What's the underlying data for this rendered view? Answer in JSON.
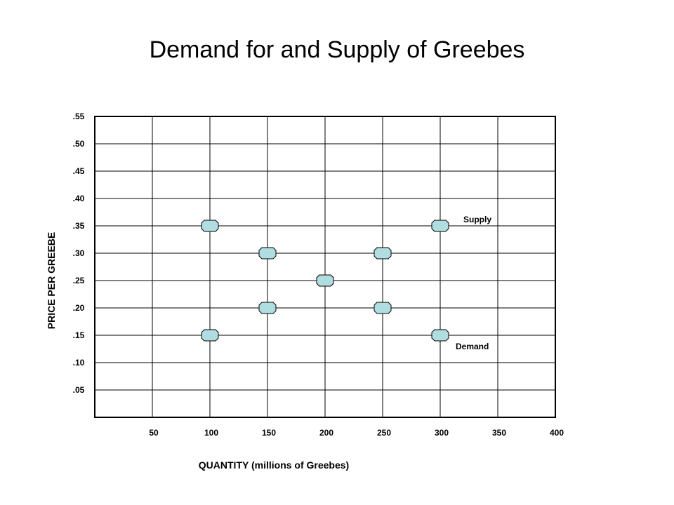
{
  "chart_data": {
    "type": "scatter",
    "title": "Demand for and Supply of Greebes",
    "xlabel": "QUANTITY (millions of Greebes)",
    "ylabel": "PRICE PER GREEBE",
    "xlim": [
      0,
      400
    ],
    "ylim": [
      0,
      0.55
    ],
    "x_ticks": [
      50,
      100,
      150,
      200,
      250,
      300,
      350,
      400
    ],
    "x_tick_labels": [
      "50",
      "100",
      "150",
      "200",
      "250",
      "300",
      "350",
      "400"
    ],
    "y_ticks": [
      0.05,
      0.1,
      0.15,
      0.2,
      0.25,
      0.3,
      0.35,
      0.4,
      0.45,
      0.5,
      0.55
    ],
    "y_tick_labels": [
      ".05",
      ".10",
      ".15",
      ".20",
      ".25",
      ".30",
      ".35",
      ".40",
      ".45",
      ".50",
      ".55"
    ],
    "grid": true,
    "series": [
      {
        "name": "Supply",
        "x": [
          100,
          150,
          200,
          250,
          300
        ],
        "y": [
          0.15,
          0.2,
          0.25,
          0.3,
          0.35
        ]
      },
      {
        "name": "Demand",
        "x": [
          100,
          150,
          200,
          250,
          300
        ],
        "y": [
          0.35,
          0.3,
          0.25,
          0.2,
          0.15
        ]
      }
    ],
    "marker_color": "#b0dde0",
    "marker_stroke": "#000000"
  }
}
